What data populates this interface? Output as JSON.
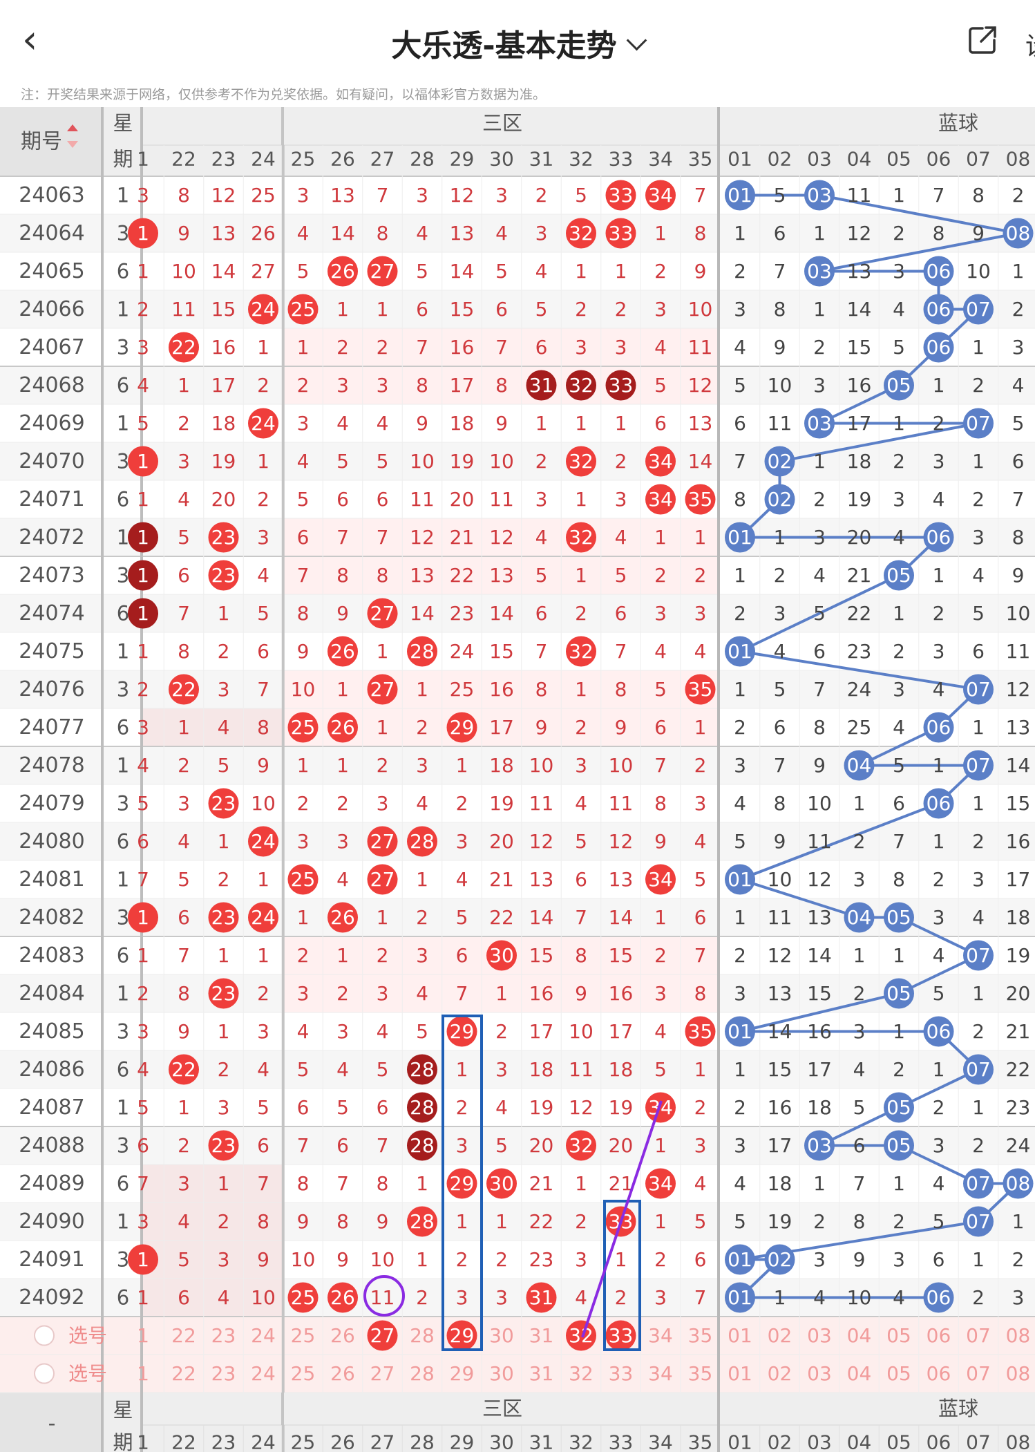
{
  "header": {
    "back_icon": "chevron-left-icon",
    "title": "大乐透-基本走势",
    "title_dropdown_icon": "chevron-down-icon",
    "share_icon": "share-icon",
    "right_cut_text": "设"
  },
  "note": "注：开奖结果来源于网络，仅供参考不作为兑奖依据。如有疑问，以福体彩官方数据为准。",
  "table": {
    "head": {
      "issue": "期号",
      "sort_icon": "sort-icon",
      "week_top": "星",
      "week_bottom": "期",
      "zone3": "三区",
      "blue": "蓝球"
    },
    "front_cols": [
      "1",
      "22",
      "23",
      "24",
      "25",
      "26",
      "27",
      "28",
      "29",
      "30",
      "31",
      "32",
      "33",
      "34",
      "35"
    ],
    "blue_cols": [
      "01",
      "02",
      "03",
      "04",
      "05",
      "06",
      "07",
      "08"
    ],
    "rows": [
      {
        "id": "24063",
        "w": "1",
        "f": [
          "3",
          "8",
          "12",
          "25",
          "3",
          "13",
          "7",
          "3",
          "12",
          "3",
          "2",
          "5",
          "33",
          "34",
          "7"
        ],
        "b": [
          "01",
          "5",
          "03",
          "11",
          "1",
          "7",
          "8",
          "2"
        ]
      },
      {
        "id": "24064",
        "w": "3",
        "f": [
          "1",
          "9",
          "13",
          "26",
          "4",
          "14",
          "8",
          "4",
          "13",
          "4",
          "3",
          "32",
          "33",
          "1",
          "8"
        ],
        "b": [
          "1",
          "6",
          "1",
          "12",
          "2",
          "8",
          "9",
          "08"
        ]
      },
      {
        "id": "24065",
        "w": "6",
        "f": [
          "1",
          "10",
          "14",
          "27",
          "5",
          "26",
          "27",
          "5",
          "14",
          "5",
          "4",
          "1",
          "1",
          "2",
          "9"
        ],
        "b": [
          "2",
          "7",
          "03",
          "13",
          "3",
          "06",
          "10",
          "1"
        ]
      },
      {
        "id": "24066",
        "w": "1",
        "f": [
          "2",
          "11",
          "15",
          "24",
          "25",
          "1",
          "1",
          "6",
          "15",
          "6",
          "5",
          "2",
          "2",
          "3",
          "10"
        ],
        "b": [
          "3",
          "8",
          "1",
          "14",
          "4",
          "06",
          "07",
          "2"
        ]
      },
      {
        "id": "24067",
        "w": "3",
        "f": [
          "3",
          "22",
          "16",
          "1",
          "1",
          "2",
          "2",
          "7",
          "16",
          "7",
          "6",
          "3",
          "3",
          "4",
          "11"
        ],
        "b": [
          "4",
          "9",
          "2",
          "15",
          "5",
          "06",
          "1",
          "3"
        ]
      },
      {
        "id": "24068",
        "w": "6",
        "f": [
          "4",
          "1",
          "17",
          "2",
          "2",
          "3",
          "3",
          "8",
          "17",
          "8",
          "31",
          "32",
          "33",
          "5",
          "12"
        ],
        "b": [
          "5",
          "10",
          "3",
          "16",
          "05",
          "1",
          "2",
          "4"
        ]
      },
      {
        "id": "24069",
        "w": "1",
        "f": [
          "5",
          "2",
          "18",
          "24",
          "3",
          "4",
          "4",
          "9",
          "18",
          "9",
          "1",
          "1",
          "1",
          "6",
          "13"
        ],
        "b": [
          "6",
          "11",
          "03",
          "17",
          "1",
          "2",
          "07",
          "5"
        ]
      },
      {
        "id": "24070",
        "w": "3",
        "f": [
          "1",
          "3",
          "19",
          "1",
          "4",
          "5",
          "5",
          "10",
          "19",
          "10",
          "2",
          "32",
          "2",
          "34",
          "14"
        ],
        "b": [
          "7",
          "02",
          "1",
          "18",
          "2",
          "3",
          "1",
          "6"
        ]
      },
      {
        "id": "24071",
        "w": "6",
        "f": [
          "1",
          "4",
          "20",
          "2",
          "5",
          "6",
          "6",
          "11",
          "20",
          "11",
          "3",
          "1",
          "3",
          "34",
          "35"
        ],
        "b": [
          "8",
          "02",
          "2",
          "19",
          "3",
          "4",
          "2",
          "7"
        ]
      },
      {
        "id": "24072",
        "w": "1",
        "f": [
          "1",
          "5",
          "23",
          "3",
          "6",
          "7",
          "7",
          "12",
          "21",
          "12",
          "4",
          "32",
          "4",
          "1",
          "1"
        ],
        "b": [
          "01",
          "1",
          "3",
          "20",
          "4",
          "06",
          "3",
          "8"
        ]
      },
      {
        "id": "24073",
        "w": "3",
        "f": [
          "1",
          "6",
          "23",
          "4",
          "7",
          "8",
          "8",
          "13",
          "22",
          "13",
          "5",
          "1",
          "5",
          "2",
          "2"
        ],
        "b": [
          "1",
          "2",
          "4",
          "21",
          "05",
          "1",
          "4",
          "9"
        ]
      },
      {
        "id": "24074",
        "w": "6",
        "f": [
          "1",
          "7",
          "1",
          "5",
          "8",
          "9",
          "27",
          "14",
          "23",
          "14",
          "6",
          "2",
          "6",
          "3",
          "3"
        ],
        "b": [
          "2",
          "3",
          "5",
          "22",
          "1",
          "2",
          "5",
          "10"
        ]
      },
      {
        "id": "24075",
        "w": "1",
        "f": [
          "1",
          "8",
          "2",
          "6",
          "9",
          "26",
          "1",
          "28",
          "24",
          "15",
          "7",
          "32",
          "7",
          "4",
          "4"
        ],
        "b": [
          "01",
          "4",
          "6",
          "23",
          "2",
          "3",
          "6",
          "11"
        ]
      },
      {
        "id": "24076",
        "w": "3",
        "f": [
          "2",
          "22",
          "3",
          "7",
          "10",
          "1",
          "27",
          "1",
          "25",
          "16",
          "8",
          "1",
          "8",
          "5",
          "35"
        ],
        "b": [
          "1",
          "5",
          "7",
          "24",
          "3",
          "4",
          "07",
          "12"
        ]
      },
      {
        "id": "24077",
        "w": "6",
        "f": [
          "3",
          "1",
          "4",
          "8",
          "25",
          "26",
          "1",
          "2",
          "29",
          "17",
          "9",
          "2",
          "9",
          "6",
          "1"
        ],
        "b": [
          "2",
          "6",
          "8",
          "25",
          "4",
          "06",
          "1",
          "13"
        ]
      },
      {
        "id": "24078",
        "w": "1",
        "f": [
          "4",
          "2",
          "5",
          "9",
          "1",
          "1",
          "2",
          "3",
          "1",
          "18",
          "10",
          "3",
          "10",
          "7",
          "2"
        ],
        "b": [
          "3",
          "7",
          "9",
          "04",
          "5",
          "1",
          "07",
          "14"
        ]
      },
      {
        "id": "24079",
        "w": "3",
        "f": [
          "5",
          "3",
          "23",
          "10",
          "2",
          "2",
          "3",
          "4",
          "2",
          "19",
          "11",
          "4",
          "11",
          "8",
          "3"
        ],
        "b": [
          "4",
          "8",
          "10",
          "1",
          "6",
          "06",
          "1",
          "15"
        ]
      },
      {
        "id": "24080",
        "w": "6",
        "f": [
          "6",
          "4",
          "1",
          "24",
          "3",
          "3",
          "27",
          "28",
          "3",
          "20",
          "12",
          "5",
          "12",
          "9",
          "4"
        ],
        "b": [
          "5",
          "9",
          "11",
          "2",
          "7",
          "1",
          "2",
          "16"
        ]
      },
      {
        "id": "24081",
        "w": "1",
        "f": [
          "7",
          "5",
          "2",
          "1",
          "25",
          "4",
          "27",
          "1",
          "4",
          "21",
          "13",
          "6",
          "13",
          "34",
          "5"
        ],
        "b": [
          "01",
          "10",
          "12",
          "3",
          "8",
          "2",
          "3",
          "17"
        ]
      },
      {
        "id": "24082",
        "w": "3",
        "f": [
          "1",
          "6",
          "23",
          "24",
          "1",
          "26",
          "1",
          "2",
          "5",
          "22",
          "14",
          "7",
          "14",
          "1",
          "6"
        ],
        "b": [
          "1",
          "11",
          "13",
          "04",
          "05",
          "3",
          "4",
          "18"
        ]
      },
      {
        "id": "24083",
        "w": "6",
        "f": [
          "1",
          "7",
          "1",
          "1",
          "2",
          "1",
          "2",
          "3",
          "6",
          "30",
          "15",
          "8",
          "15",
          "2",
          "7"
        ],
        "b": [
          "2",
          "12",
          "14",
          "1",
          "1",
          "4",
          "07",
          "19"
        ]
      },
      {
        "id": "24084",
        "w": "1",
        "f": [
          "2",
          "8",
          "23",
          "2",
          "3",
          "2",
          "3",
          "4",
          "7",
          "1",
          "16",
          "9",
          "16",
          "3",
          "8"
        ],
        "b": [
          "3",
          "13",
          "15",
          "2",
          "05",
          "5",
          "1",
          "20"
        ]
      },
      {
        "id": "24085",
        "w": "3",
        "f": [
          "3",
          "9",
          "1",
          "3",
          "4",
          "3",
          "4",
          "5",
          "29",
          "2",
          "17",
          "10",
          "17",
          "4",
          "35"
        ],
        "b": [
          "01",
          "14",
          "16",
          "3",
          "1",
          "06",
          "2",
          "21"
        ]
      },
      {
        "id": "24086",
        "w": "6",
        "f": [
          "4",
          "22",
          "2",
          "4",
          "5",
          "4",
          "5",
          "28",
          "1",
          "3",
          "18",
          "11",
          "18",
          "5",
          "1"
        ],
        "b": [
          "1",
          "15",
          "17",
          "4",
          "2",
          "1",
          "07",
          "22"
        ]
      },
      {
        "id": "24087",
        "w": "1",
        "f": [
          "5",
          "1",
          "3",
          "5",
          "6",
          "5",
          "6",
          "28",
          "2",
          "4",
          "19",
          "12",
          "19",
          "34",
          "2"
        ],
        "b": [
          "2",
          "16",
          "18",
          "5",
          "05",
          "2",
          "1",
          "23"
        ]
      },
      {
        "id": "24088",
        "w": "3",
        "f": [
          "6",
          "2",
          "23",
          "6",
          "7",
          "6",
          "7",
          "28",
          "3",
          "5",
          "20",
          "32",
          "20",
          "1",
          "3"
        ],
        "b": [
          "3",
          "17",
          "03",
          "6",
          "05",
          "3",
          "2",
          "24"
        ]
      },
      {
        "id": "24089",
        "w": "6",
        "f": [
          "7",
          "3",
          "1",
          "7",
          "8",
          "7",
          "8",
          "1",
          "29",
          "30",
          "21",
          "1",
          "21",
          "34",
          "4"
        ],
        "b": [
          "4",
          "18",
          "1",
          "7",
          "1",
          "4",
          "07",
          "08"
        ]
      },
      {
        "id": "24090",
        "w": "1",
        "f": [
          "3",
          "4",
          "2",
          "8",
          "9",
          "8",
          "9",
          "28",
          "1",
          "1",
          "22",
          "2",
          "33",
          "1",
          "5"
        ],
        "b": [
          "5",
          "19",
          "2",
          "8",
          "2",
          "5",
          "07",
          "1"
        ]
      },
      {
        "id": "24091",
        "w": "3",
        "f": [
          "1",
          "5",
          "3",
          "9",
          "10",
          "9",
          "10",
          "1",
          "2",
          "2",
          "23",
          "3",
          "1",
          "2",
          "6"
        ],
        "b": [
          "01",
          "02",
          "3",
          "9",
          "3",
          "6",
          "1",
          "2"
        ]
      },
      {
        "id": "24092",
        "w": "6",
        "f": [
          "1",
          "6",
          "4",
          "10",
          "25",
          "26",
          "11",
          "2",
          "3",
          "3",
          "31",
          "4",
          "2",
          "3",
          "7"
        ],
        "b": [
          "01",
          "1",
          "4",
          "10",
          "4",
          "06",
          "2",
          "3"
        ]
      }
    ],
    "select_label": "选号",
    "select_row1_front": [
      "1",
      "22",
      "23",
      "24",
      "25",
      "26",
      "27",
      "28",
      "29",
      "30",
      "31",
      "32",
      "33",
      "34",
      "35"
    ],
    "select_row2_front": [
      "1",
      "22",
      "23",
      "24",
      "25",
      "26",
      "27",
      "28",
      "29",
      "30",
      "31",
      "32",
      "33",
      "34",
      "35"
    ],
    "select_row1_blue": [
      "01",
      "02",
      "03",
      "04",
      "05",
      "06",
      "07",
      "08"
    ],
    "select_row2_blue": [
      "01",
      "02",
      "03",
      "04",
      "05",
      "06",
      "07",
      "08"
    ],
    "select_row1_picked": [
      "27",
      "29",
      "32",
      "33"
    ],
    "footer": {
      "issue": "-",
      "week_top": "星",
      "week_bottom": "期",
      "zone3": "三区",
      "blue": "蓝球"
    }
  },
  "colors": {
    "red_ball": "#ef3e3b",
    "dark_red_ball": "#a51d1d",
    "blue_ball": "#5b7fc7",
    "annotation_blue": "#1f5fb5",
    "annotation_purple": "#8a2be2"
  }
}
